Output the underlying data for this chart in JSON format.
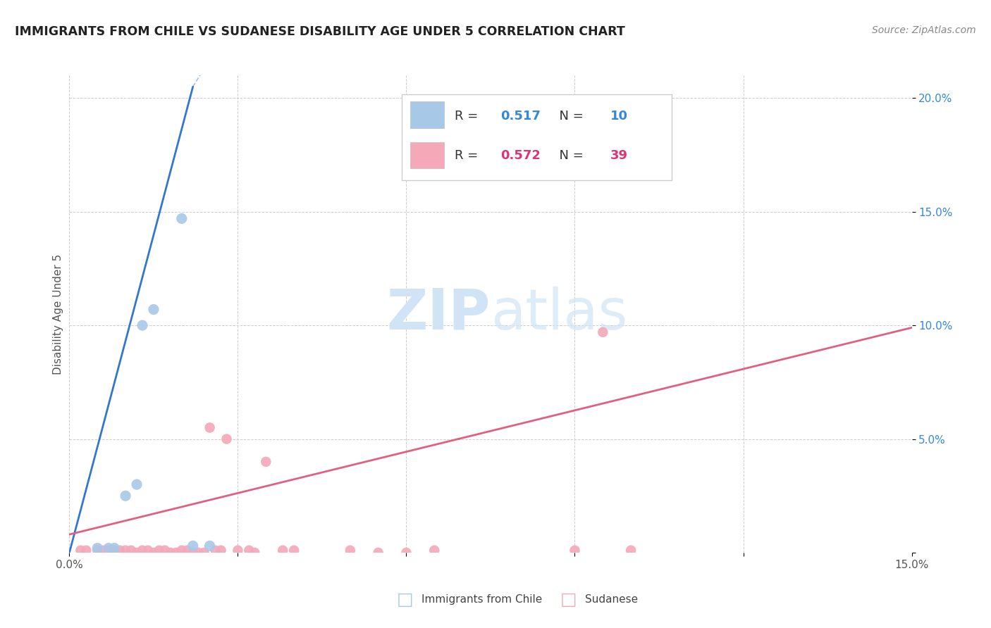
{
  "title": "IMMIGRANTS FROM CHILE VS SUDANESE DISABILITY AGE UNDER 5 CORRELATION CHART",
  "source": "Source: ZipAtlas.com",
  "ylabel": "Disability Age Under 5",
  "xlim": [
    0.0,
    0.15
  ],
  "ylim": [
    0.0,
    0.21
  ],
  "xticks": [
    0.0,
    0.03,
    0.06,
    0.09,
    0.12,
    0.15
  ],
  "xtick_labels": [
    "0.0%",
    "",
    "",
    "",
    "",
    "15.0%"
  ],
  "yticks": [
    0.0,
    0.05,
    0.1,
    0.15,
    0.2
  ],
  "ytick_labels": [
    "",
    "5.0%",
    "10.0%",
    "15.0%",
    "20.0%"
  ],
  "legend_r1": "R = ",
  "legend_v1": "0.517",
  "legend_n1_label": "  N = ",
  "legend_n1_val": "10",
  "legend_r2": "R = ",
  "legend_v2": "0.572",
  "legend_n2_label": "  N = ",
  "legend_n2_val": "39",
  "blue_color": "#a8c8e8",
  "pink_color": "#f4a8b8",
  "blue_line_color": "#3377cc",
  "pink_line_color": "#e06080",
  "blue_text_color": "#3388dd",
  "pink_text_color": "#dd3377",
  "watermark_color": "#d0e4f5",
  "chile_points": [
    [
      0.005,
      0.002
    ],
    [
      0.007,
      0.002
    ],
    [
      0.008,
      0.002
    ],
    [
      0.01,
      0.025
    ],
    [
      0.012,
      0.03
    ],
    [
      0.013,
      0.1
    ],
    [
      0.015,
      0.107
    ],
    [
      0.02,
      0.147
    ],
    [
      0.022,
      0.003
    ],
    [
      0.025,
      0.003
    ]
  ],
  "sudanese_points": [
    [
      0.002,
      0.001
    ],
    [
      0.003,
      0.001
    ],
    [
      0.005,
      0.001
    ],
    [
      0.006,
      0.001
    ],
    [
      0.007,
      0.001
    ],
    [
      0.008,
      0.001
    ],
    [
      0.009,
      0.001
    ],
    [
      0.01,
      0.001
    ],
    [
      0.011,
      0.001
    ],
    [
      0.012,
      0.0
    ],
    [
      0.013,
      0.001
    ],
    [
      0.014,
      0.001
    ],
    [
      0.015,
      0.0
    ],
    [
      0.016,
      0.001
    ],
    [
      0.017,
      0.001
    ],
    [
      0.018,
      0.0
    ],
    [
      0.019,
      0.0
    ],
    [
      0.02,
      0.001
    ],
    [
      0.021,
      0.001
    ],
    [
      0.022,
      0.0
    ],
    [
      0.023,
      0.0
    ],
    [
      0.024,
      0.0
    ],
    [
      0.025,
      0.055
    ],
    [
      0.026,
      0.001
    ],
    [
      0.027,
      0.001
    ],
    [
      0.028,
      0.05
    ],
    [
      0.03,
      0.001
    ],
    [
      0.032,
      0.001
    ],
    [
      0.033,
      0.0
    ],
    [
      0.035,
      0.04
    ],
    [
      0.038,
      0.001
    ],
    [
      0.04,
      0.001
    ],
    [
      0.05,
      0.001
    ],
    [
      0.055,
      0.0
    ],
    [
      0.06,
      0.0
    ],
    [
      0.065,
      0.001
    ],
    [
      0.09,
      0.001
    ],
    [
      0.095,
      0.097
    ],
    [
      0.1,
      0.001
    ]
  ],
  "blue_trendline_solid": [
    [
      0.0,
      0.0
    ],
    [
      0.022,
      0.205
    ]
  ],
  "blue_trendline_dashed": [
    [
      0.022,
      0.205
    ],
    [
      0.075,
      0.42
    ]
  ],
  "pink_trendline": [
    [
      0.0,
      0.008
    ],
    [
      0.15,
      0.099
    ]
  ]
}
